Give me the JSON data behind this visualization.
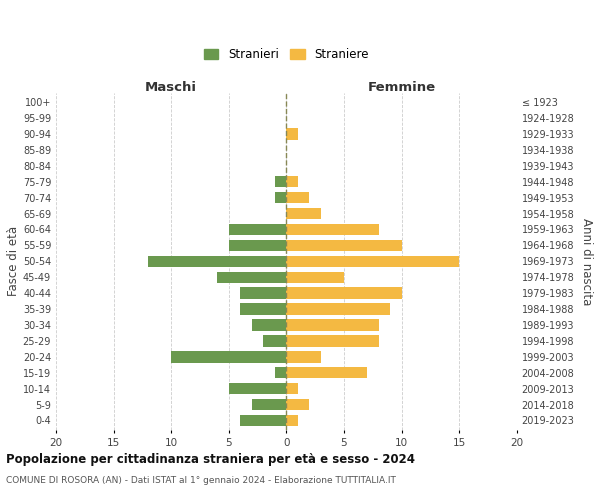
{
  "age_groups": [
    "0-4",
    "5-9",
    "10-14",
    "15-19",
    "20-24",
    "25-29",
    "30-34",
    "35-39",
    "40-44",
    "45-49",
    "50-54",
    "55-59",
    "60-64",
    "65-69",
    "70-74",
    "75-79",
    "80-84",
    "85-89",
    "90-94",
    "95-99",
    "100+"
  ],
  "birth_years": [
    "2019-2023",
    "2014-2018",
    "2009-2013",
    "2004-2008",
    "1999-2003",
    "1994-1998",
    "1989-1993",
    "1984-1988",
    "1979-1983",
    "1974-1978",
    "1969-1973",
    "1964-1968",
    "1959-1963",
    "1954-1958",
    "1949-1953",
    "1944-1948",
    "1939-1943",
    "1934-1938",
    "1929-1933",
    "1924-1928",
    "≤ 1923"
  ],
  "males": [
    4,
    3,
    5,
    1,
    10,
    2,
    3,
    4,
    4,
    6,
    12,
    5,
    5,
    0,
    1,
    1,
    0,
    0,
    0,
    0,
    0
  ],
  "females": [
    1,
    2,
    1,
    7,
    3,
    8,
    8,
    9,
    10,
    5,
    15,
    10,
    8,
    3,
    2,
    1,
    0,
    0,
    1,
    0,
    0
  ],
  "male_color": "#6a994e",
  "female_color": "#f4b942",
  "grid_color": "#cccccc",
  "title": "Popolazione per cittadinanza straniera per età e sesso - 2024",
  "subtitle": "COMUNE DI ROSORA (AN) - Dati ISTAT al 1° gennaio 2024 - Elaborazione TUTTITALIA.IT",
  "ylabel_left": "Fasce di età",
  "ylabel_right": "Anni di nascita",
  "xlim": 20,
  "legend_male": "Stranieri",
  "legend_female": "Straniere",
  "maschi_label": "Maschi",
  "femmine_label": "Femmine",
  "xticks": [
    -20,
    -15,
    -10,
    -5,
    0,
    5,
    10,
    15,
    20
  ]
}
